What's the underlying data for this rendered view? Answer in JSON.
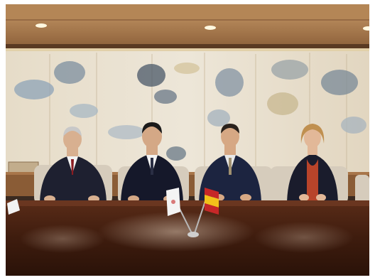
{
  "scene": {
    "subject": "",
    "people_count": 4,
    "flags": [
      "japan-flag",
      "spain-flag"
    ]
  },
  "colors": {
    "ceiling": "#b98c5c",
    "wall_panel": "#e8e0d2",
    "table": "#4a2414",
    "suit_dark": "#1d2236",
    "chair": "#d9cfc0",
    "accent_red": "#b22a1e",
    "accent_yellow": "#f2c21a"
  }
}
